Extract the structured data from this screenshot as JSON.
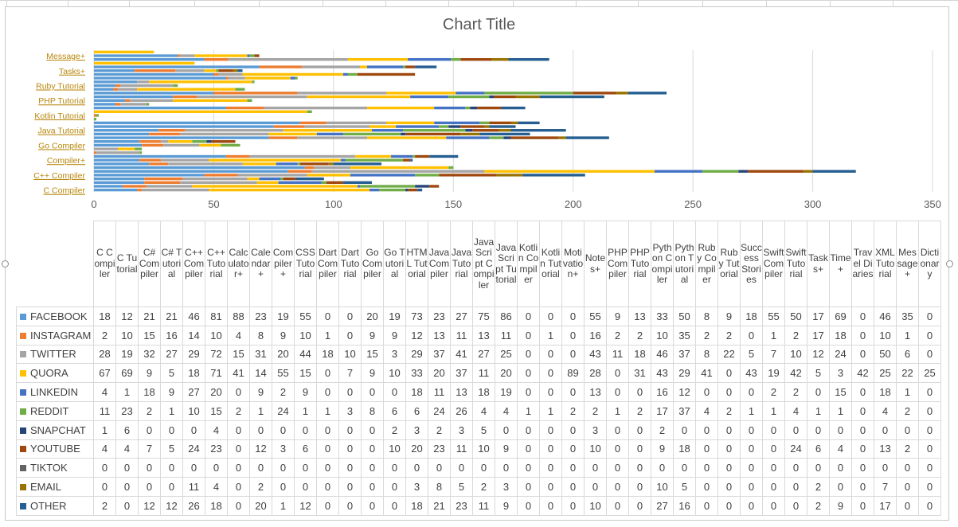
{
  "title": "Chart Title",
  "chart_data": {
    "type": "bar",
    "orientation": "horizontal",
    "stacked": true,
    "title": "Chart Title",
    "xlim": [
      0,
      350
    ],
    "x_ticks": [
      "0",
      "50",
      "100",
      "150",
      "200",
      "250",
      "300",
      "350"
    ],
    "grid": true,
    "legend": "data-table",
    "visible_category_labels": [
      "Message+",
      "Tasks+",
      "Ruby Tutorial",
      "PHP Tutorial",
      "Kotlin Tutorial",
      "Java Tutorial",
      "Go Compiler",
      "Compiler+",
      "C++ Compiler",
      "C Compiler"
    ],
    "categories": [
      "C Compiler",
      "C Tutorial",
      "C# Compiler",
      "C# Tutorial",
      "C++ Compiler",
      "C++ Tutorial",
      "Calculator+",
      "Calendar+",
      "Compiler+",
      "CSS Tutorial",
      "Dart Compiler",
      "Dart Tutorial",
      "Go Compiler",
      "Go Tutorial",
      "HTML Tutorial",
      "Java Compiler",
      "Java Tutorial",
      "JavaScript Compiler",
      "JavaScript Tutorial",
      "Kotlin Compiler",
      "Kotlin Tutorial",
      "Motivation+",
      "Notes+",
      "PHP Compiler",
      "PHP Tutorial",
      "Python Compiler",
      "Python Tutorial",
      "Ruby Compiler",
      "Ruby Tutorial",
      "Success Stories",
      "Swift Compiler",
      "Swift Tutorial",
      "Tasks+",
      "Time+",
      "Travel Diaries",
      "XML Tutorial",
      "Message+",
      "Dictionary"
    ],
    "header_labels": [
      "C Compiler",
      "C Tutorial",
      "C# Compiler",
      "C# Tutorial",
      "C++ Compiler",
      "C++ Tutorial",
      "Calculator+",
      "Calendar+",
      "Compiler+",
      "CSS Tutorial",
      "Dart Compiler",
      "Dart Tutorial",
      "Go Compiler",
      "Go Tutorial",
      "HTML Tutorial",
      "Java Compiler",
      "Java Tutorial",
      "JavaScript Compiler",
      "JavaScript Tutorial",
      "Kotlin Compiler",
      "Kotlin Tutorial",
      "Motivation+",
      "Notes+",
      "PHP Compiler",
      "PHP Tutorial",
      "Python Compiler",
      "Python Tutorial",
      "Ruby Compiler",
      "Ruby Tutorial",
      "Success Stories",
      "Swift Compiler",
      "Swift Tutorial",
      "Tasks+",
      "Time+",
      "Travel Diaries",
      "XML Tutorial",
      "Message+",
      "Dictionary"
    ],
    "series": [
      {
        "name": "FACEBOOK",
        "color": "#5b9bd5",
        "values": [
          18,
          12,
          21,
          21,
          46,
          81,
          88,
          23,
          19,
          55,
          0,
          0,
          20,
          19,
          73,
          23,
          27,
          75,
          86,
          0,
          0,
          0,
          55,
          9,
          13,
          33,
          50,
          8,
          9,
          18,
          55,
          50,
          17,
          69,
          0,
          46,
          35,
          0
        ]
      },
      {
        "name": "INSTAGRAM",
        "color": "#ed7d31",
        "values": [
          2,
          10,
          15,
          16,
          14,
          10,
          4,
          8,
          9,
          10,
          1,
          0,
          9,
          9,
          12,
          13,
          11,
          13,
          11,
          0,
          1,
          0,
          16,
          2,
          2,
          10,
          35,
          2,
          2,
          0,
          1,
          2,
          17,
          18,
          0,
          10,
          1,
          0
        ]
      },
      {
        "name": "TWITTER",
        "color": "#a5a5a5",
        "values": [
          28,
          19,
          32,
          27,
          29,
          72,
          15,
          31,
          20,
          44,
          18,
          10,
          15,
          3,
          29,
          37,
          41,
          27,
          25,
          0,
          0,
          0,
          43,
          11,
          18,
          46,
          37,
          8,
          22,
          5,
          7,
          10,
          12,
          24,
          0,
          50,
          6,
          0
        ]
      },
      {
        "name": "QUORA",
        "color": "#ffc000",
        "values": [
          67,
          69,
          9,
          5,
          18,
          71,
          41,
          14,
          55,
          15,
          0,
          7,
          9,
          10,
          33,
          20,
          37,
          11,
          20,
          0,
          0,
          89,
          28,
          0,
          31,
          43,
          29,
          41,
          0,
          43,
          19,
          42,
          5,
          3,
          42,
          25,
          22,
          25
        ]
      },
      {
        "name": "LINKEDIN",
        "color": "#4472c4",
        "values": [
          4,
          1,
          18,
          9,
          27,
          20,
          0,
          9,
          2,
          9,
          0,
          0,
          0,
          0,
          18,
          11,
          13,
          18,
          19,
          0,
          0,
          0,
          13,
          0,
          0,
          16,
          12,
          0,
          0,
          0,
          2,
          2,
          0,
          15,
          0,
          18,
          1,
          0
        ]
      },
      {
        "name": "REDDIT",
        "color": "#70ad47",
        "values": [
          11,
          23,
          2,
          1,
          10,
          15,
          2,
          1,
          24,
          1,
          1,
          3,
          8,
          6,
          6,
          24,
          26,
          4,
          4,
          1,
          1,
          2,
          2,
          1,
          2,
          17,
          37,
          4,
          2,
          1,
          1,
          4,
          1,
          1,
          0,
          4,
          2,
          0
        ]
      },
      {
        "name": "SNAPCHAT",
        "color": "#264478",
        "values": [
          1,
          6,
          0,
          0,
          0,
          4,
          0,
          0,
          0,
          0,
          0,
          0,
          0,
          2,
          3,
          2,
          3,
          5,
          0,
          0,
          0,
          0,
          3,
          0,
          0,
          2,
          0,
          0,
          0,
          0,
          0,
          0,
          0,
          0,
          0,
          0,
          0,
          0
        ]
      },
      {
        "name": "YOUTUBE",
        "color": "#9e480e",
        "values": [
          4,
          4,
          7,
          5,
          24,
          23,
          0,
          12,
          3,
          6,
          0,
          0,
          0,
          10,
          20,
          23,
          11,
          10,
          9,
          0,
          0,
          0,
          10,
          0,
          0,
          9,
          18,
          0,
          0,
          0,
          0,
          24,
          6,
          4,
          0,
          13,
          2,
          0
        ]
      },
      {
        "name": "TIKTOK",
        "color": "#636363",
        "values": [
          0,
          0,
          0,
          0,
          0,
          0,
          0,
          0,
          0,
          0,
          0,
          0,
          0,
          0,
          0,
          0,
          0,
          0,
          0,
          0,
          0,
          0,
          0,
          0,
          0,
          0,
          0,
          0,
          0,
          0,
          0,
          0,
          0,
          0,
          0,
          0,
          0,
          0
        ]
      },
      {
        "name": "EMAIL",
        "color": "#997300",
        "values": [
          0,
          0,
          0,
          0,
          11,
          4,
          0,
          2,
          0,
          0,
          0,
          0,
          0,
          0,
          3,
          8,
          5,
          2,
          3,
          0,
          0,
          0,
          0,
          0,
          0,
          10,
          5,
          0,
          0,
          0,
          0,
          0,
          2,
          0,
          0,
          7,
          0,
          0
        ]
      },
      {
        "name": "OTHER",
        "color": "#255e91",
        "values": [
          2,
          0,
          12,
          12,
          26,
          18,
          0,
          20,
          1,
          12,
          0,
          0,
          0,
          0,
          18,
          21,
          23,
          11,
          9,
          0,
          0,
          0,
          10,
          0,
          0,
          27,
          16,
          0,
          0,
          0,
          0,
          0,
          2,
          9,
          0,
          17,
          0,
          0
        ]
      }
    ]
  }
}
